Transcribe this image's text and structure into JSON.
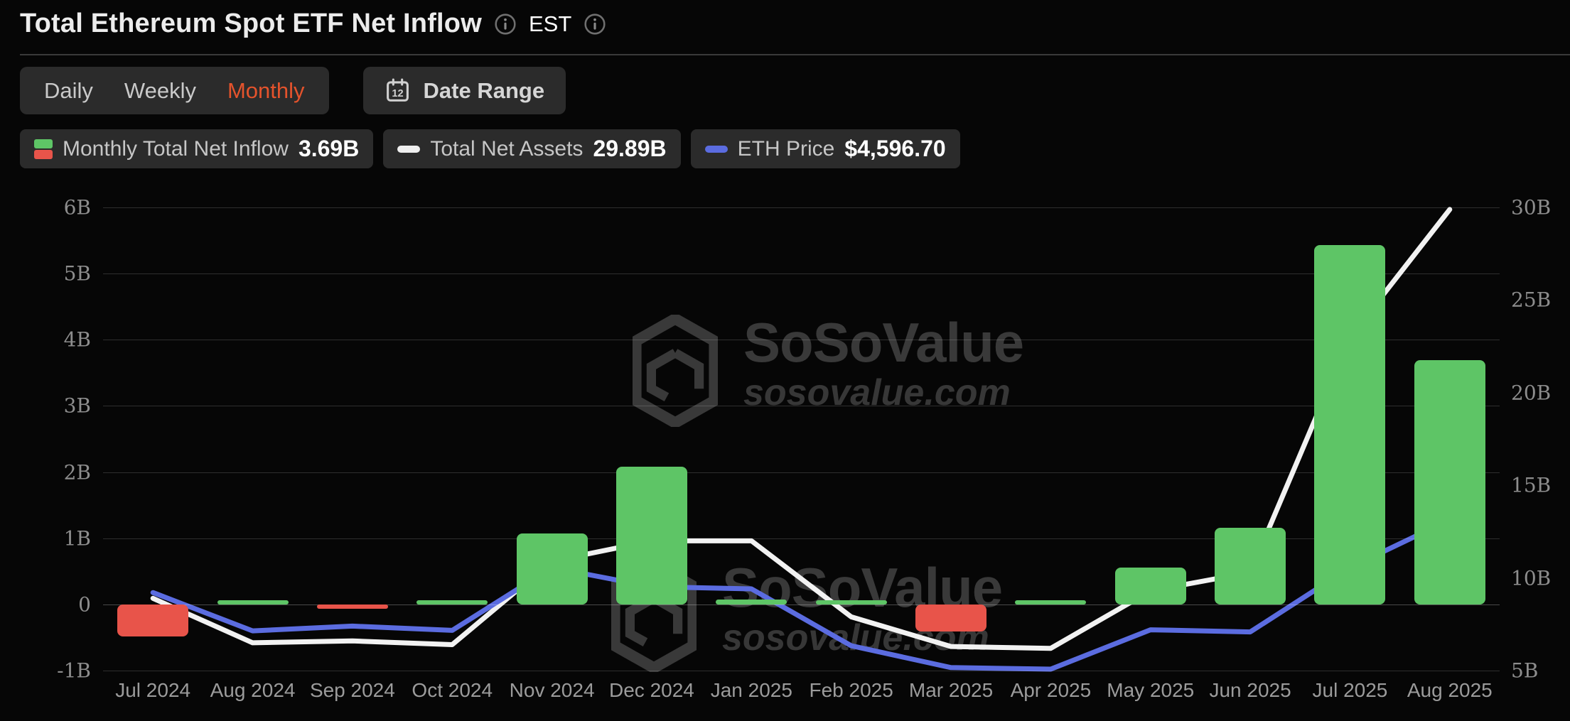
{
  "header": {
    "title": "Total Ethereum Spot ETF Net Inflow",
    "timezone": "EST"
  },
  "controls": {
    "tabs": [
      "Daily",
      "Weekly",
      "Monthly"
    ],
    "active_tab": "Monthly",
    "date_range_label": "Date Range",
    "calendar_icon_day": "12"
  },
  "legend": [
    {
      "icon": "green-red-bars-icon",
      "label": "Monthly Total Net Inflow",
      "value": "3.69B"
    },
    {
      "icon": "white-dash-icon",
      "label": "Total Net Assets",
      "value": "29.89B"
    },
    {
      "icon": "blue-dash-icon",
      "label": "ETH Price",
      "value": "$4,596.70"
    }
  ],
  "watermark": {
    "brand": "SoSoValue",
    "domain": "sosovalue.com"
  },
  "colors": {
    "positive_bar": "#5ec566",
    "negative_bar": "#e8544a",
    "net_assets_line": "#f2f2f2",
    "eth_price_line": "#5b6ce0",
    "active_tab": "#e4532c"
  },
  "chart_data": {
    "type": "bar",
    "grid": true,
    "legend_position": "top-left",
    "categories": [
      "Jul 2024",
      "Aug 2024",
      "Sep 2024",
      "Oct 2024",
      "Nov 2024",
      "Dec 2024",
      "Jan 2025",
      "Feb 2025",
      "Mar 2025",
      "Apr 2025",
      "May 2025",
      "Jun 2025",
      "Jul 2025",
      "Aug 2025"
    ],
    "series": [
      {
        "name": "Monthly Total Net Inflow",
        "type": "bar",
        "axis": "left",
        "unit": "B USD",
        "values": [
          -0.48,
          0.01,
          -0.05,
          0.05,
          1.07,
          2.08,
          0.07,
          0.03,
          -0.41,
          0.03,
          0.56,
          1.16,
          5.43,
          3.69
        ]
      },
      {
        "name": "Total Net Assets",
        "type": "line",
        "axis": "right",
        "unit": "B USD",
        "values": [
          8.9,
          6.5,
          6.6,
          6.4,
          10.9,
          12.0,
          12.0,
          7.9,
          6.3,
          6.2,
          9.3,
          10.3,
          23.0,
          29.89
        ]
      },
      {
        "name": "ETH Price",
        "type": "line",
        "axis": "hidden",
        "unit": "USD",
        "values": [
          3230,
          2510,
          2600,
          2520,
          3700,
          3340,
          3300,
          2230,
          1820,
          1790,
          2530,
          2490,
          3700,
          4596.7
        ]
      }
    ],
    "left_axis": {
      "title": "",
      "ylim": [
        -1,
        6
      ],
      "ticks": [
        {
          "label": "6B",
          "value": 6
        },
        {
          "label": "5B",
          "value": 5
        },
        {
          "label": "4B",
          "value": 4
        },
        {
          "label": "3B",
          "value": 3
        },
        {
          "label": "2B",
          "value": 2
        },
        {
          "label": "1B",
          "value": 1
        },
        {
          "label": "0",
          "value": 0
        },
        {
          "label": "-1B",
          "value": -1
        }
      ]
    },
    "right_axis": {
      "title": "",
      "ylim": [
        5,
        30
      ],
      "ticks": [
        {
          "label": "30B",
          "value": 30
        },
        {
          "label": "25B",
          "value": 25
        },
        {
          "label": "20B",
          "value": 20
        },
        {
          "label": "15B",
          "value": 15
        },
        {
          "label": "10B",
          "value": 10
        },
        {
          "label": "5B",
          "value": 5
        }
      ]
    }
  }
}
